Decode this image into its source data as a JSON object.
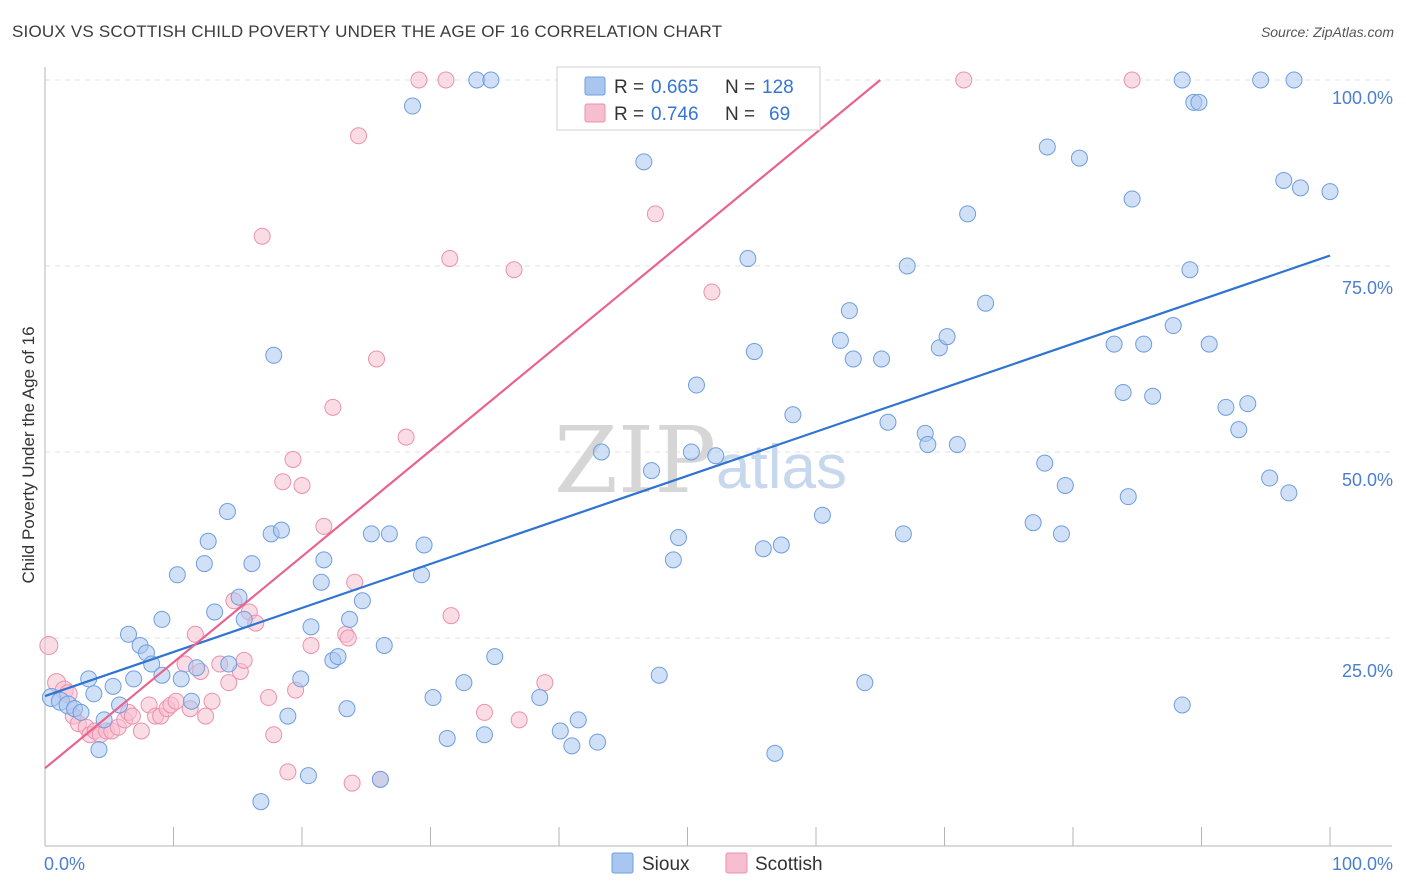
{
  "header": {
    "title": "SIOUX VS SCOTTISH CHILD POVERTY UNDER THE AGE OF 16 CORRELATION CHART",
    "source": "Source: ZipAtlas.com"
  },
  "watermark": {
    "zip": "ZIP",
    "atlas": "atlas"
  },
  "colors": {
    "sioux_fill": "#a9c6ef",
    "sioux_stroke": "#6f9ee0",
    "sioux_line": "#2f74d0",
    "scottish_fill": "#f6bfd0",
    "scottish_stroke": "#ec91ac",
    "scottish_line": "#e8648e",
    "tick_label": "#4a7fd0"
  },
  "legend": {
    "rows": [
      {
        "r_label": "R = ",
        "r_value": "0.665",
        "n_label": "N = ",
        "n_value": "128"
      },
      {
        "r_label": "R = ",
        "r_value": "0.746",
        "n_label": "N = ",
        "n_value": "69"
      }
    ],
    "bottom": [
      "Sioux",
      "Scottish"
    ]
  },
  "chart_data": {
    "type": "scatter",
    "title": "SIOUX VS SCOTTISH CHILD POVERTY UNDER THE AGE OF 16 CORRELATION CHART",
    "xlabel": "",
    "ylabel": "Child Poverty Under the Age of 16",
    "xlim": [
      0,
      100
    ],
    "ylim": [
      0,
      100
    ],
    "x_tick_labels": [
      "0.0%",
      "100.0%"
    ],
    "y_ticks": [
      25,
      50,
      75,
      100
    ],
    "y_tick_labels": [
      "25.0%",
      "50.0%",
      "75.0%",
      "100.0%"
    ],
    "grid": "horizontal dashed",
    "legend_position": "top-center",
    "series": [
      {
        "name": "Sioux",
        "r": 0.665,
        "n": 128,
        "trend": {
          "x": [
            0,
            100
          ],
          "y": [
            17.2,
            76.4
          ]
        },
        "points": [
          [
            0.5,
            17
          ],
          [
            1.2,
            16.5
          ],
          [
            1.8,
            16
          ],
          [
            2.3,
            15.5
          ],
          [
            2.8,
            15
          ],
          [
            3.4,
            19.5
          ],
          [
            3.8,
            17.5
          ],
          [
            4.2,
            10
          ],
          [
            4.6,
            14
          ],
          [
            5.3,
            18.5
          ],
          [
            5.8,
            16
          ],
          [
            6.5,
            25.5
          ],
          [
            6.9,
            19.5
          ],
          [
            7.4,
            24
          ],
          [
            7.9,
            23
          ],
          [
            8.3,
            21.5
          ],
          [
            9.1,
            20
          ],
          [
            9.1,
            27.5
          ],
          [
            10.3,
            33.5
          ],
          [
            10.6,
            19.5
          ],
          [
            11.4,
            16.5
          ],
          [
            11.8,
            21
          ],
          [
            12.4,
            35
          ],
          [
            12.7,
            38
          ],
          [
            13.2,
            28.5
          ],
          [
            14.2,
            42
          ],
          [
            14.3,
            21.5
          ],
          [
            15.1,
            30.5
          ],
          [
            15.5,
            27.5
          ],
          [
            16.1,
            35
          ],
          [
            16.8,
            3
          ],
          [
            17.6,
            39
          ],
          [
            17.8,
            63
          ],
          [
            18.4,
            39.5
          ],
          [
            18.9,
            14.5
          ],
          [
            19.9,
            19.5
          ],
          [
            20.5,
            6.5
          ],
          [
            20.7,
            26.5
          ],
          [
            21.5,
            32.5
          ],
          [
            21.7,
            35.5
          ],
          [
            22.4,
            22
          ],
          [
            22.8,
            22.5
          ],
          [
            23.5,
            15.5
          ],
          [
            23.7,
            27.5
          ],
          [
            24.7,
            30
          ],
          [
            25.4,
            39
          ],
          [
            26.1,
            6
          ],
          [
            26.4,
            24
          ],
          [
            26.8,
            39
          ],
          [
            28.6,
            96.5
          ],
          [
            29.3,
            33.5
          ],
          [
            29.5,
            37.5
          ],
          [
            30.2,
            17
          ],
          [
            31.3,
            11.5
          ],
          [
            32.6,
            19
          ],
          [
            33.6,
            100
          ],
          [
            34.2,
            12
          ],
          [
            34.7,
            100
          ],
          [
            35.0,
            22.5
          ],
          [
            38.5,
            17
          ],
          [
            40.1,
            12.5
          ],
          [
            41.0,
            10.5
          ],
          [
            41.5,
            14
          ],
          [
            43.0,
            11
          ],
          [
            43.3,
            50
          ],
          [
            46.6,
            89
          ],
          [
            47.2,
            47.5
          ],
          [
            47.8,
            20
          ],
          [
            48.9,
            35.5
          ],
          [
            49.3,
            38.5
          ],
          [
            50.3,
            50
          ],
          [
            50.7,
            59
          ],
          [
            52.2,
            49.5
          ],
          [
            54.7,
            76
          ],
          [
            55.2,
            63.5
          ],
          [
            55.9,
            37
          ],
          [
            56.8,
            9.5
          ],
          [
            57.3,
            37.5
          ],
          [
            58.2,
            55
          ],
          [
            60.5,
            41.5
          ],
          [
            61.9,
            65
          ],
          [
            62.6,
            69
          ],
          [
            62.9,
            62.5
          ],
          [
            63.8,
            19
          ],
          [
            65.1,
            62.5
          ],
          [
            65.6,
            54
          ],
          [
            66.8,
            39
          ],
          [
            67.1,
            75
          ],
          [
            68.5,
            52.5
          ],
          [
            68.7,
            51
          ],
          [
            69.6,
            64
          ],
          [
            70.2,
            65.5
          ],
          [
            71.0,
            51
          ],
          [
            71.8,
            82
          ],
          [
            73.2,
            70
          ],
          [
            76.9,
            40.5
          ],
          [
            77.8,
            48.5
          ],
          [
            78.0,
            91
          ],
          [
            79.1,
            39
          ],
          [
            79.4,
            45.5
          ],
          [
            80.5,
            89.5
          ],
          [
            83.2,
            64.5
          ],
          [
            83.9,
            58
          ],
          [
            84.3,
            44
          ],
          [
            84.6,
            84
          ],
          [
            85.5,
            64.5
          ],
          [
            86.2,
            57.5
          ],
          [
            87.8,
            67
          ],
          [
            88.5,
            16
          ],
          [
            88.5,
            100
          ],
          [
            89.1,
            74.5
          ],
          [
            89.4,
            97
          ],
          [
            89.8,
            97
          ],
          [
            90.6,
            64.5
          ],
          [
            91.9,
            56
          ],
          [
            92.9,
            53
          ],
          [
            93.6,
            56.5
          ],
          [
            94.6,
            100
          ],
          [
            95.3,
            46.5
          ],
          [
            96.4,
            86.5
          ],
          [
            96.8,
            44.5
          ],
          [
            97.2,
            100
          ],
          [
            97.7,
            85.5
          ],
          [
            100,
            85
          ]
        ]
      },
      {
        "name": "Scottish",
        "r": 0.746,
        "n": 69,
        "trend": {
          "x": [
            0,
            65
          ],
          "y": [
            7.5,
            100
          ]
        },
        "points": [
          [
            0.3,
            24
          ],
          [
            0.9,
            19
          ],
          [
            1.5,
            18
          ],
          [
            1.8,
            17.5
          ],
          [
            2.2,
            14.5
          ],
          [
            2.6,
            13.5
          ],
          [
            3.2,
            13
          ],
          [
            3.5,
            12
          ],
          [
            3.9,
            12.5
          ],
          [
            4.3,
            12
          ],
          [
            4.8,
            12.5
          ],
          [
            5.2,
            12.5
          ],
          [
            5.7,
            13
          ],
          [
            6.2,
            14
          ],
          [
            6.5,
            15
          ],
          [
            6.8,
            14.5
          ],
          [
            7.5,
            12.5
          ],
          [
            8.1,
            16
          ],
          [
            8.6,
            14.5
          ],
          [
            9.0,
            14.5
          ],
          [
            9.5,
            15.5
          ],
          [
            9.8,
            16
          ],
          [
            10.2,
            16.5
          ],
          [
            10.9,
            21.5
          ],
          [
            11.3,
            15.5
          ],
          [
            11.7,
            25.5
          ],
          [
            12.1,
            20.5
          ],
          [
            12.5,
            14.5
          ],
          [
            13.0,
            16.5
          ],
          [
            13.6,
            21.5
          ],
          [
            14.3,
            19
          ],
          [
            14.7,
            30
          ],
          [
            15.2,
            20.5
          ],
          [
            15.5,
            22
          ],
          [
            15.9,
            28.5
          ],
          [
            16.4,
            27
          ],
          [
            16.9,
            79
          ],
          [
            17.4,
            17
          ],
          [
            17.8,
            12
          ],
          [
            18.5,
            46
          ],
          [
            18.9,
            7
          ],
          [
            19.3,
            49
          ],
          [
            19.5,
            18
          ],
          [
            20.0,
            45.5
          ],
          [
            20.7,
            24
          ],
          [
            21.7,
            40
          ],
          [
            22.4,
            56
          ],
          [
            23.4,
            25.5
          ],
          [
            23.6,
            25
          ],
          [
            23.9,
            5.5
          ],
          [
            24.1,
            32.5
          ],
          [
            24.4,
            92.5
          ],
          [
            25.8,
            62.5
          ],
          [
            26.1,
            6
          ],
          [
            28.1,
            52
          ],
          [
            29.1,
            100
          ],
          [
            31.2,
            100
          ],
          [
            31.5,
            76
          ],
          [
            31.6,
            28
          ],
          [
            34.2,
            15
          ],
          [
            36.5,
            74.5
          ],
          [
            36.9,
            14
          ],
          [
            38.9,
            19
          ],
          [
            43.9,
            100
          ],
          [
            47.5,
            82
          ],
          [
            51.2,
            100
          ],
          [
            51.9,
            71.5
          ],
          [
            71.5,
            100
          ],
          [
            84.6,
            100
          ]
        ]
      }
    ]
  }
}
